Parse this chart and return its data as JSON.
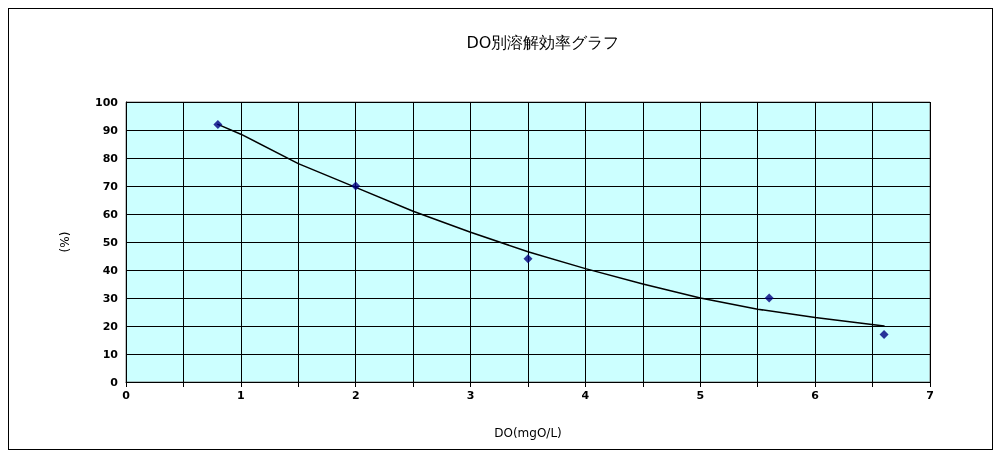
{
  "chart_data": {
    "type": "scatter",
    "title": "DO別溶解効率グラフ",
    "xlabel": "DO(mgO/L)",
    "ylabel": "(%)",
    "xlim": [
      0,
      7
    ],
    "xticks": [
      0,
      {
        "value": 0.5,
        "label": null
      },
      1,
      {
        "value": 1.5,
        "label": null
      },
      2,
      {
        "value": 2.5,
        "label": null
      },
      3,
      {
        "value": 3.5,
        "label": null
      },
      4,
      {
        "value": 4.5,
        "label": null
      },
      5,
      {
        "value": 5.5,
        "label": null
      },
      6,
      {
        "value": 6.5,
        "label": null
      },
      7
    ],
    "ylim": [
      0,
      100
    ],
    "yticks": [
      0,
      10,
      20,
      30,
      40,
      50,
      60,
      70,
      80,
      90,
      100
    ],
    "grid": true,
    "marker": "diamond",
    "series": [
      {
        "color": "#000080",
        "x": [
          0.8,
          2,
          3.5,
          5.6,
          6.6
        ],
        "values": [
          92,
          70,
          44,
          30,
          17
        ]
      },
      {
        "type": "line",
        "color": "#000000",
        "line_style": "solid",
        "marker": "none",
        "x": [
          0.8,
          1,
          1.5,
          2,
          2.5,
          3,
          3.5,
          4,
          4.5,
          5,
          5.5,
          6,
          6.6
        ],
        "values": [
          92,
          88.5,
          78,
          69.5,
          61,
          53.5,
          46.5,
          40.5,
          35,
          30,
          26,
          23,
          20
        ]
      }
    ]
  }
}
